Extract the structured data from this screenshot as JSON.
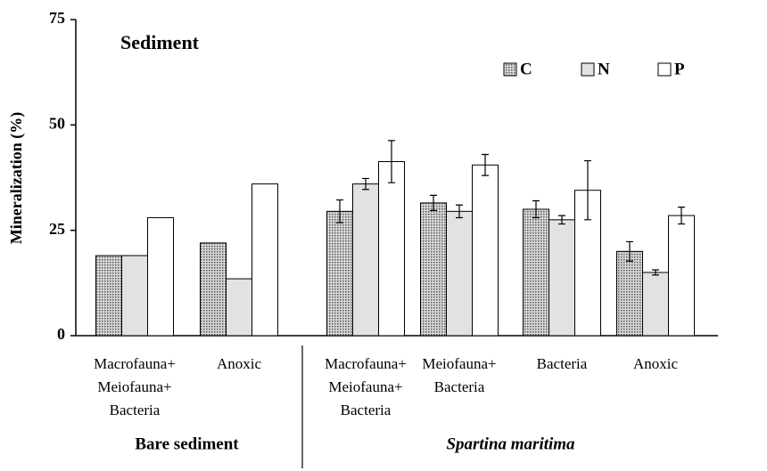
{
  "chart_data": {
    "type": "bar",
    "title": "Sediment",
    "y_label": "Mineralization (%)",
    "categories": [
      [
        "Macrofauna+",
        "Meiofauna+",
        "Bacteria"
      ],
      [
        "Anoxic"
      ],
      [
        "Macrofauna+",
        "Meiofauna+",
        "Bacteria"
      ],
      [
        "Meiofauna+",
        "Bacteria"
      ],
      [
        "Bacteria"
      ],
      [
        "Anoxic"
      ]
    ],
    "groups": [
      {
        "name": "Bare sediment",
        "italic": false,
        "span": [
          0,
          1
        ]
      },
      {
        "name": "Spartina maritima",
        "italic": true,
        "span": [
          2,
          5
        ]
      }
    ],
    "series": [
      {
        "name": "C",
        "color": "#b0b0b0",
        "pattern": "dots",
        "values": [
          19,
          22,
          29.5,
          31.5,
          30,
          20
        ],
        "errors": [
          null,
          null,
          2.7,
          1.8,
          2,
          2.3
        ]
      },
      {
        "name": "N",
        "color": "#e2e2e2",
        "values": [
          19,
          13.5,
          36,
          29.5,
          27.5,
          15
        ],
        "errors": [
          null,
          null,
          1.3,
          1.5,
          1,
          0.6
        ]
      },
      {
        "name": "P",
        "color": "#ffffff",
        "values": [
          28,
          36,
          41.3,
          40.5,
          34.5,
          28.5
        ],
        "errors": [
          null,
          null,
          5,
          2.5,
          7,
          2
        ]
      }
    ],
    "ylim": [
      0,
      75
    ],
    "yticks": [
      0,
      25,
      50,
      75
    ],
    "grid": false,
    "legend": "top-right"
  }
}
